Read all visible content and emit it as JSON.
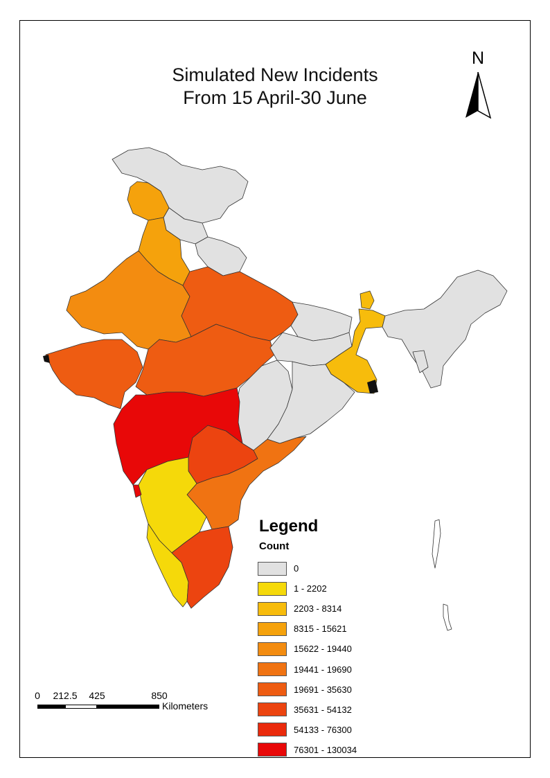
{
  "title": {
    "line1": "Simulated New Incidents",
    "line2": "From 15 April-30 June"
  },
  "north_arrow": {
    "label": "N"
  },
  "legend": {
    "title": "Legend",
    "subtitle": "Count",
    "classes": [
      {
        "label": "0",
        "color": "#e1e1e1"
      },
      {
        "label": "1 - 2202",
        "color": "#f5d90a"
      },
      {
        "label": "2203 - 8314",
        "color": "#f7bc0c"
      },
      {
        "label": "8315 - 15621",
        "color": "#f5a20c"
      },
      {
        "label": "15622 - 19440",
        "color": "#f38c10"
      },
      {
        "label": "19441 - 19690",
        "color": "#f07312"
      },
      {
        "label": "19691 - 35630",
        "color": "#ee5c12"
      },
      {
        "label": "35631 - 54132",
        "color": "#ec4410"
      },
      {
        "label": "54133 - 76300",
        "color": "#ea2a0c"
      },
      {
        "label": "76301 - 130034",
        "color": "#e80808"
      }
    ]
  },
  "scale_bar": {
    "ticks": [
      "0",
      "212.5",
      "425",
      "850"
    ],
    "units": "Kilometers"
  }
}
